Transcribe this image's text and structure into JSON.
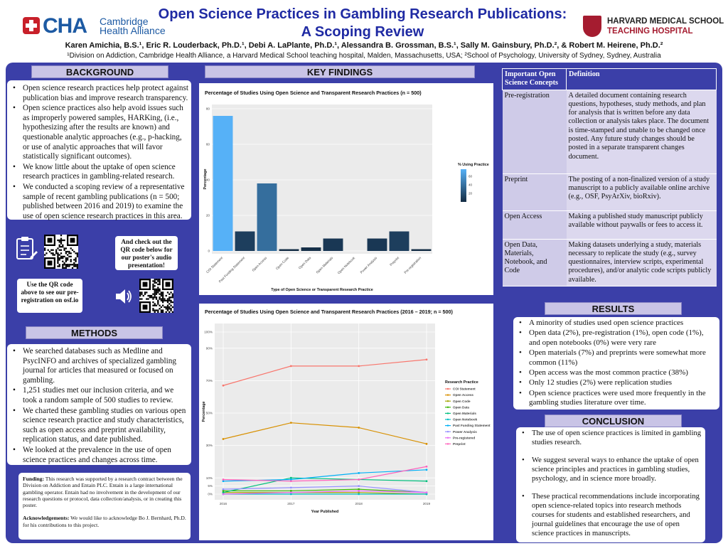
{
  "header": {
    "title_line1": "Open Science Practices in Gambling Research Publications:",
    "title_line2": "A Scoping Review",
    "authors": "Karen Amichia, B.S.¹, Eric R. Louderback, Ph.D.¹, Debi A. LaPlante, Ph.D.¹, Alessandra B. Grossman, B.S.¹, Sally M. Gainsbury, Ph.D.², & Robert M. Heirene, Ph.D.²",
    "affiliations": "¹Division on Addiction, Cambridge Health Alliance, a Harvard Medical School teaching hospital, Malden, Massachusetts, USA; ²School of Psychology, University of Sydney, Sydney, Australia",
    "logo_left_main": "CHA",
    "logo_left_sub": "Cambridge Health Alliance",
    "logo_right_line1": "HARVARD MEDICAL SCHOOL",
    "logo_right_line2": "TEACHING HOSPITAL"
  },
  "background": {
    "heading": "BACKGROUND",
    "bullets": [
      "Open science research practices help protect against publication bias and improve research transparency.",
      "Open science practices also help avoid issues such as improperly powered samples, HARKing, (i.e., hypothesizing after the results are known) and questionable analytic approaches (e.g., p-hacking, or use of analytic approaches that will favor statistically significant outcomes).",
      "We know little about the uptake of open science research practices in gambling-related research.",
      "We conducted a scoping review of a representative sample of recent gambling publications (n = 500; published between 2016 and 2019) to examine the use of open science research practices in this area."
    ]
  },
  "qr": {
    "audio_note": "And check out the QR code below for our poster's audio presentation!",
    "osf_note": "Use the QR code above to see our pre-registration on osf.io"
  },
  "methods": {
    "heading": "METHODS",
    "bullets": [
      "We searched databases such as Medline and PsycINFO and archives of specialized gambling journal for articles that measured or focused on gambling.",
      "1,251 studies met our inclusion criteria, and we took a random sample of 500 studies to review.",
      "We charted these gambling studies on various open science research practice and study characteristics, such as open access and preprint availability, replication status, and date published.",
      "We looked at the prevalence in the use of open science practices and changes across time."
    ]
  },
  "funding": {
    "funding_label": "Funding:",
    "funding_text": "This research was supported by a research contract between the Division on Addiction and Entain PLC. Entain is a large international gambling operator. Entain had no involvement in the development of our research questions or protocol, data collection/analysis, or in creating this poster.",
    "ack_label": "Acknowledgements:",
    "ack_text": "We would like to acknowledge Bo J. Bernhard, Ph.D. for his contributions to this project."
  },
  "key_findings": {
    "heading": "KEY FINDINGS"
  },
  "chart_data": [
    {
      "type": "bar",
      "title": "Percentage of Studies Using Open Science and Transparent Research Practices (n = 500)",
      "xlabel": "Type of Open Science or Transparent Research Practice",
      "ylabel": "Percentage",
      "ylim": [
        0,
        80
      ],
      "yticks": [
        0,
        20,
        40,
        60,
        80
      ],
      "categories": [
        "COI Statement",
        "Past Funding Statement",
        "Open Access",
        "Open Code",
        "Open Data",
        "Open Materials",
        "Open Notebook",
        "Power Analysis",
        "Preprint",
        "Pre-registration"
      ],
      "values": [
        76,
        11,
        38,
        1,
        2,
        7,
        0,
        7,
        11,
        1
      ],
      "legend_title": "% Using Practice",
      "legend_ticks": [
        60,
        40,
        20
      ],
      "color_low": "#132b43",
      "color_high": "#56b1f7"
    },
    {
      "type": "line",
      "title": "Percentage of Studies Using Open Science and Transparent Research Practices (2016 – 2019; n = 500)",
      "xlabel": "Year Published",
      "ylabel": "Percentage",
      "x": [
        2016,
        2017,
        2018,
        2019
      ],
      "ylim": [
        0,
        100
      ],
      "yticks": [
        "0%",
        "5%",
        "10%",
        "30%",
        "50%",
        "70%",
        "90%",
        "100%"
      ],
      "yticks_values": [
        0,
        5,
        10,
        30,
        50,
        70,
        90,
        100
      ],
      "legend_title": "Research Practice",
      "series": [
        {
          "name": "COI Statement",
          "color": "#f8766d",
          "values": [
            67,
            79,
            79,
            83
          ]
        },
        {
          "name": "Open Access",
          "color": "#d89000",
          "values": [
            34,
            44,
            41,
            31
          ]
        },
        {
          "name": "Open Code",
          "color": "#a3a500",
          "values": [
            1,
            1,
            1,
            0
          ]
        },
        {
          "name": "Open Data",
          "color": "#39b600",
          "values": [
            2,
            2,
            3,
            1
          ]
        },
        {
          "name": "Open Materials",
          "color": "#00bf7d",
          "values": [
            1,
            10,
            9,
            8
          ]
        },
        {
          "name": "Open Notebook",
          "color": "#00bfc4",
          "values": [
            0,
            0,
            0,
            0
          ]
        },
        {
          "name": "Past Funding Statement",
          "color": "#00b0f6",
          "values": [
            8,
            9,
            13,
            15
          ]
        },
        {
          "name": "Power Analysis",
          "color": "#9590ff",
          "values": [
            3,
            4,
            5,
            1
          ]
        },
        {
          "name": "Pre-registered",
          "color": "#e76bf3",
          "values": [
            0,
            1,
            2,
            1
          ]
        },
        {
          "name": "Preprint",
          "color": "#ff62bc",
          "values": [
            9,
            8,
            9,
            17
          ]
        }
      ]
    }
  ],
  "definitions": {
    "col1": "Important Open Science Concepts",
    "col2": "Definition",
    "rows": [
      {
        "term": "Pre-registration",
        "def": "A detailed document containing research questions, hypotheses, study methods, and plan for analysis that is written before any data collection or analysis takes place. The document is time-stamped and unable to be changed once posted. Any future study changes should be posted in a separate transparent changes document."
      },
      {
        "term": "Preprint",
        "def": "The posting of a non-finalized version of a study manuscript to a publicly available online archive (e.g., OSF, PsyArXiv, bioRxiv)."
      },
      {
        "term": "Open Access",
        "def": "Making a published study manuscript publicly available without paywalls or fees to access it."
      },
      {
        "term": "Open Data, Materials, Notebook, and Code",
        "def": "Making datasets underlying a study, materials necessary to replicate the study (e.g., survey questionnaires, interview scripts, experimental procedures), and/or analytic code scripts publicly available."
      }
    ]
  },
  "results": {
    "heading": "RESULTS",
    "bullets": [
      "A minority of studies used open science practices",
      "Open data (2%), pre-registration (1%), open code (1%), and open notebooks (0%) were very rare",
      "Open materials (7%) and preprints were somewhat more common (11%)",
      "Open access was the most common practice (38%)",
      "Only 12 studies (2%) were replication studies",
      "Open science practices were used more frequently in the gambling studies literature over time."
    ]
  },
  "conclusion": {
    "heading": "CONCLUSION",
    "bullets": [
      "The use of open science practices is limited in gambling studies research.",
      "We suggest several ways to enhance the uptake of open science principles and practices in gambling studies, psychology, and in science more broadly.",
      "These practical recommendations include incorporating open science-related topics into research methods courses for students and established researchers, and journal guidelines that encourage the use of open science practices in manuscripts."
    ]
  }
}
